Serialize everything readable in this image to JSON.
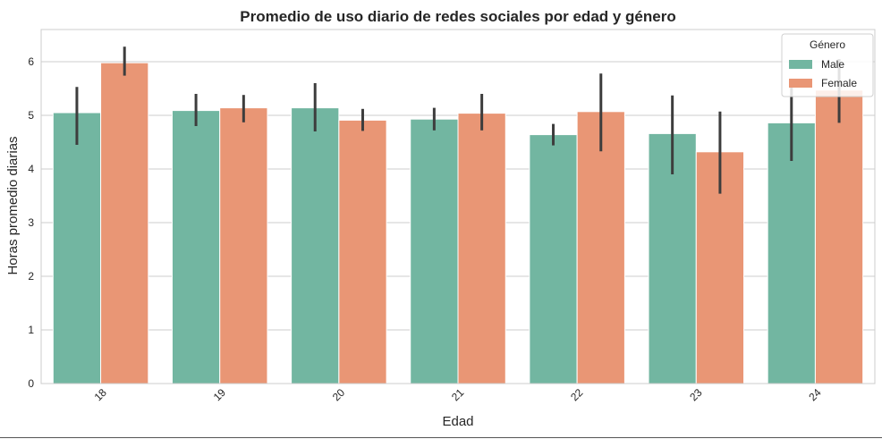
{
  "chart_data": {
    "type": "bar",
    "title": "Promedio de uso diario de redes sociales por edad y género",
    "xlabel": "Edad",
    "ylabel": "Horas promedio diarias",
    "categories": [
      "18",
      "19",
      "20",
      "21",
      "22",
      "23",
      "24"
    ],
    "ylim": [
      0,
      6.6
    ],
    "yticks": [
      "0",
      "1",
      "2",
      "3",
      "4",
      "5",
      "6"
    ],
    "grid": true,
    "legend": {
      "title": "Género",
      "placement": "top-right"
    },
    "series": [
      {
        "name": "Male",
        "color": "#72b6a1",
        "values": [
          5.05,
          5.09,
          5.14,
          4.93,
          4.64,
          4.66,
          4.86
        ],
        "ci_low": [
          4.45,
          4.8,
          4.7,
          4.72,
          4.44,
          3.9,
          4.15
        ],
        "ci_high": [
          5.53,
          5.4,
          5.6,
          5.14,
          4.84,
          5.37,
          5.55
        ]
      },
      {
        "name": "Female",
        "color": "#e99675",
        "values": [
          5.98,
          5.14,
          4.91,
          5.04,
          5.07,
          4.32,
          5.47
        ],
        "ci_low": [
          5.74,
          4.87,
          4.71,
          4.72,
          4.33,
          3.54,
          4.86
        ],
        "ci_high": [
          6.28,
          5.38,
          5.12,
          5.4,
          5.78,
          5.07,
          6.05
        ]
      }
    ]
  }
}
